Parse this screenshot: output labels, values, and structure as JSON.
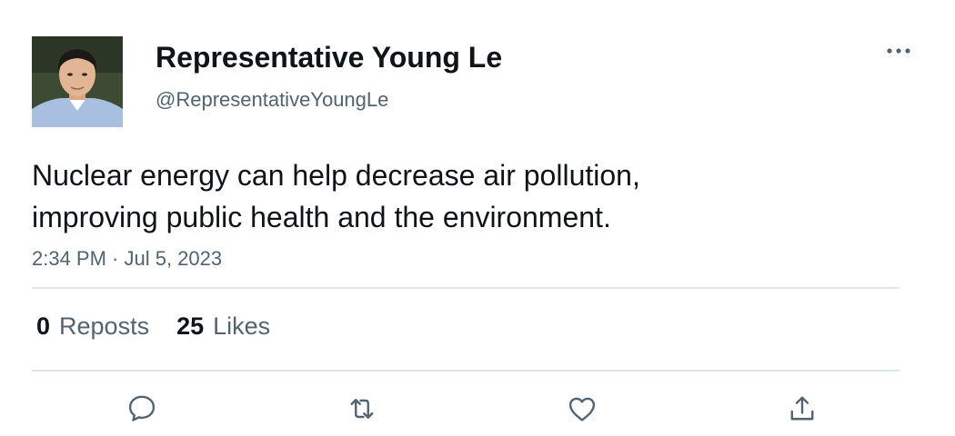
{
  "author": {
    "display_name": "Representative Young Le",
    "handle": "@RepresentativeYoungLe",
    "avatar_icon": "user-avatar-photo"
  },
  "tweet": {
    "text": "Nuclear energy can help decrease air pollution,\nimproving public health and the environment.",
    "timestamp": "2:34 PM · Jul 5, 2023"
  },
  "stats": {
    "reposts_count": "0",
    "reposts_label": "Reposts",
    "likes_count": "25",
    "likes_label": "Likes"
  },
  "actions": {
    "reply_icon": "speech-bubble-icon",
    "repost_icon": "repost-arrows-icon",
    "like_icon": "heart-icon",
    "share_icon": "share-upload-icon",
    "more_icon": "more-dots-icon"
  },
  "colors": {
    "text_primary": "#0f1419",
    "text_secondary": "#536471",
    "divider": "#e1e6ea",
    "icon": "#536471"
  }
}
